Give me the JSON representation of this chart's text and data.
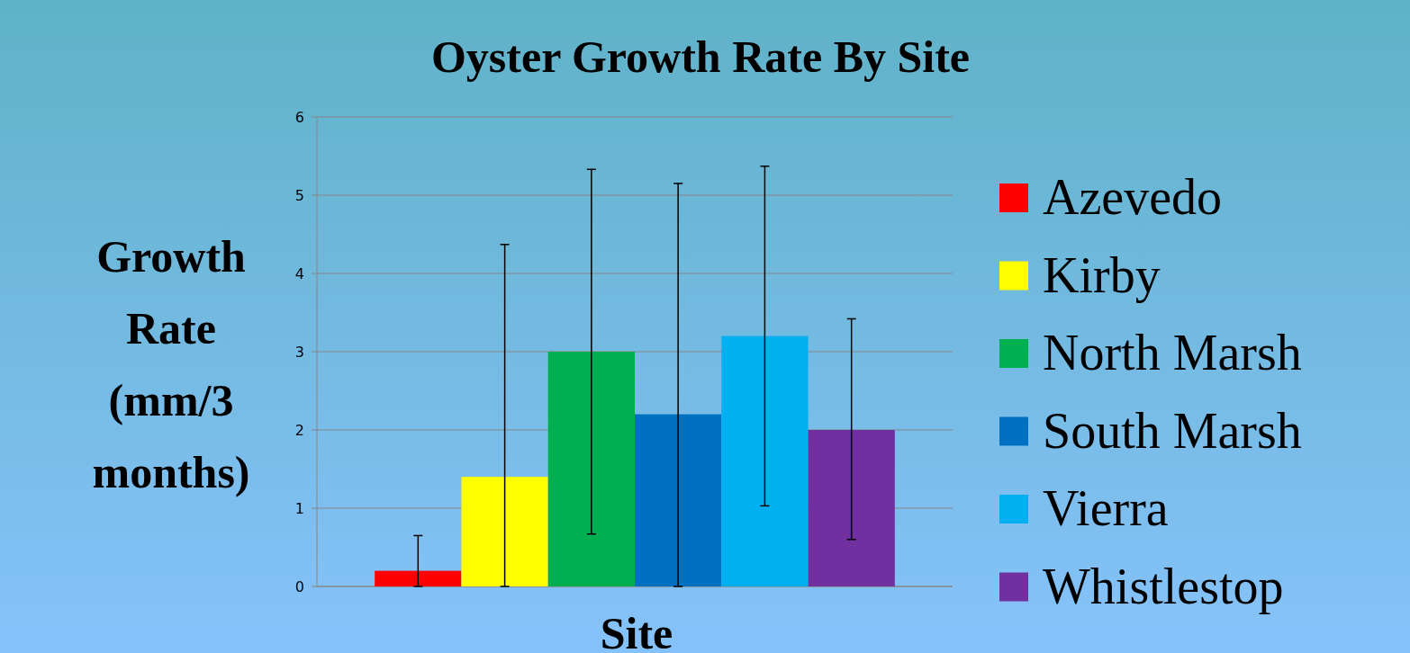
{
  "chart_data": {
    "type": "bar",
    "title": "Oyster Growth Rate By Site",
    "xlabel": "Site",
    "ylabel": "Growth Rate (mm/3 months)",
    "categories": [
      null
    ],
    "series": [
      {
        "name": "Azevedo",
        "color": "#ff0000",
        "values": [
          0.2
        ],
        "errors": [
          [
            0,
            0.65
          ]
        ]
      },
      {
        "name": "Kirby",
        "color": "#ffff00",
        "values": [
          1.4
        ],
        "errors": [
          [
            0,
            4.37
          ]
        ]
      },
      {
        "name": "North Marsh",
        "color": "#00b050",
        "values": [
          3.0
        ],
        "errors": [
          [
            0.67,
            5.33
          ]
        ]
      },
      {
        "name": "South Marsh",
        "color": "#0070c0",
        "values": [
          2.2
        ],
        "errors": [
          [
            0,
            5.15
          ]
        ]
      },
      {
        "name": "Vierra",
        "color": "#00b0f0",
        "values": [
          3.2
        ],
        "errors": [
          [
            1.03,
            5.37
          ]
        ]
      },
      {
        "name": "Whistlestop",
        "color": "#7030a0",
        "values": [
          2.0
        ],
        "errors": [
          [
            0.6,
            3.42
          ]
        ]
      }
    ],
    "ylim": [
      0,
      6
    ],
    "yticks": [
      0,
      1,
      2,
      3,
      4,
      5,
      6
    ],
    "grid": "y",
    "legend": "right"
  }
}
